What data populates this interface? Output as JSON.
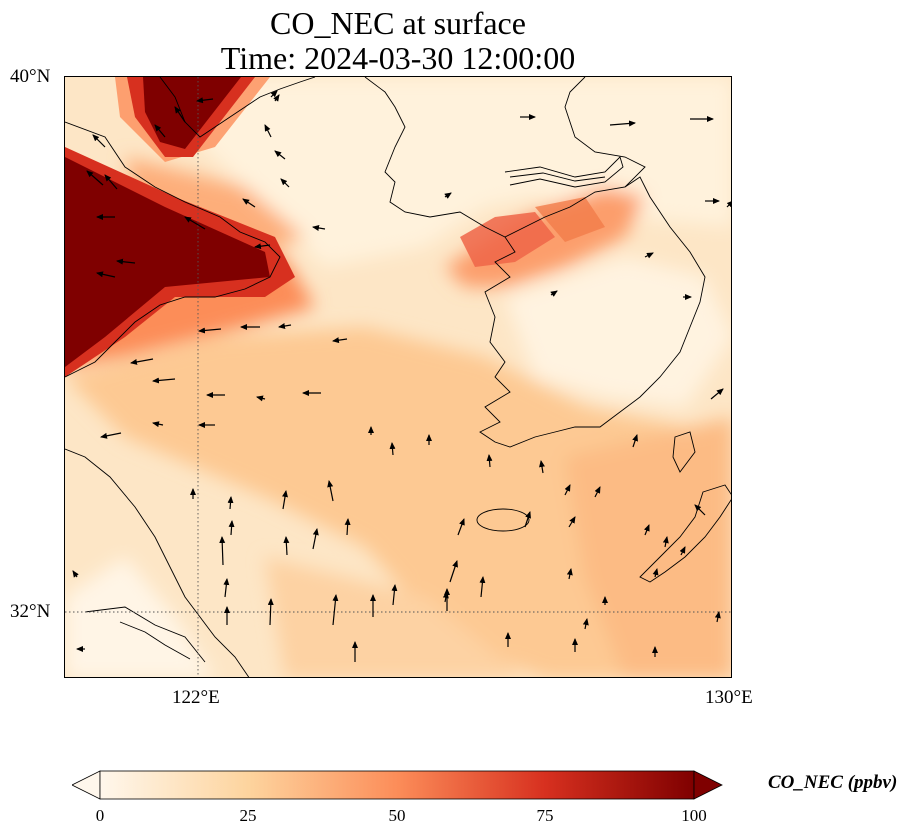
{
  "title": "CO_NEC at surface",
  "subtitle": "Time: 2024-03-30 12:00:00",
  "lat_labels": [
    "40°N",
    "32°N"
  ],
  "lon_labels": [
    "122°E",
    "130°E"
  ],
  "colorbar": {
    "label": "CO_NEC (ppbv)",
    "ticks": [
      "0",
      "25",
      "50",
      "75",
      "100"
    ],
    "colormap": "OrRd",
    "colors": [
      "#fff7ec",
      "#fdd49e",
      "#fc8d59",
      "#d7301f",
      "#7f0000"
    ]
  },
  "chart_data": {
    "type": "heatmap",
    "variable": "CO_NEC",
    "units": "ppbv",
    "level": "surface",
    "time": "2024-03-30 12:00:00",
    "lon_range": [
      120,
      130
    ],
    "lat_range": [
      31,
      40
    ],
    "value_range": [
      0,
      100
    ],
    "extend": "both",
    "gridlines": {
      "lon": [
        122,
        130
      ],
      "lat": [
        32,
        40
      ]
    },
    "vectors": "surface wind arrows"
  }
}
